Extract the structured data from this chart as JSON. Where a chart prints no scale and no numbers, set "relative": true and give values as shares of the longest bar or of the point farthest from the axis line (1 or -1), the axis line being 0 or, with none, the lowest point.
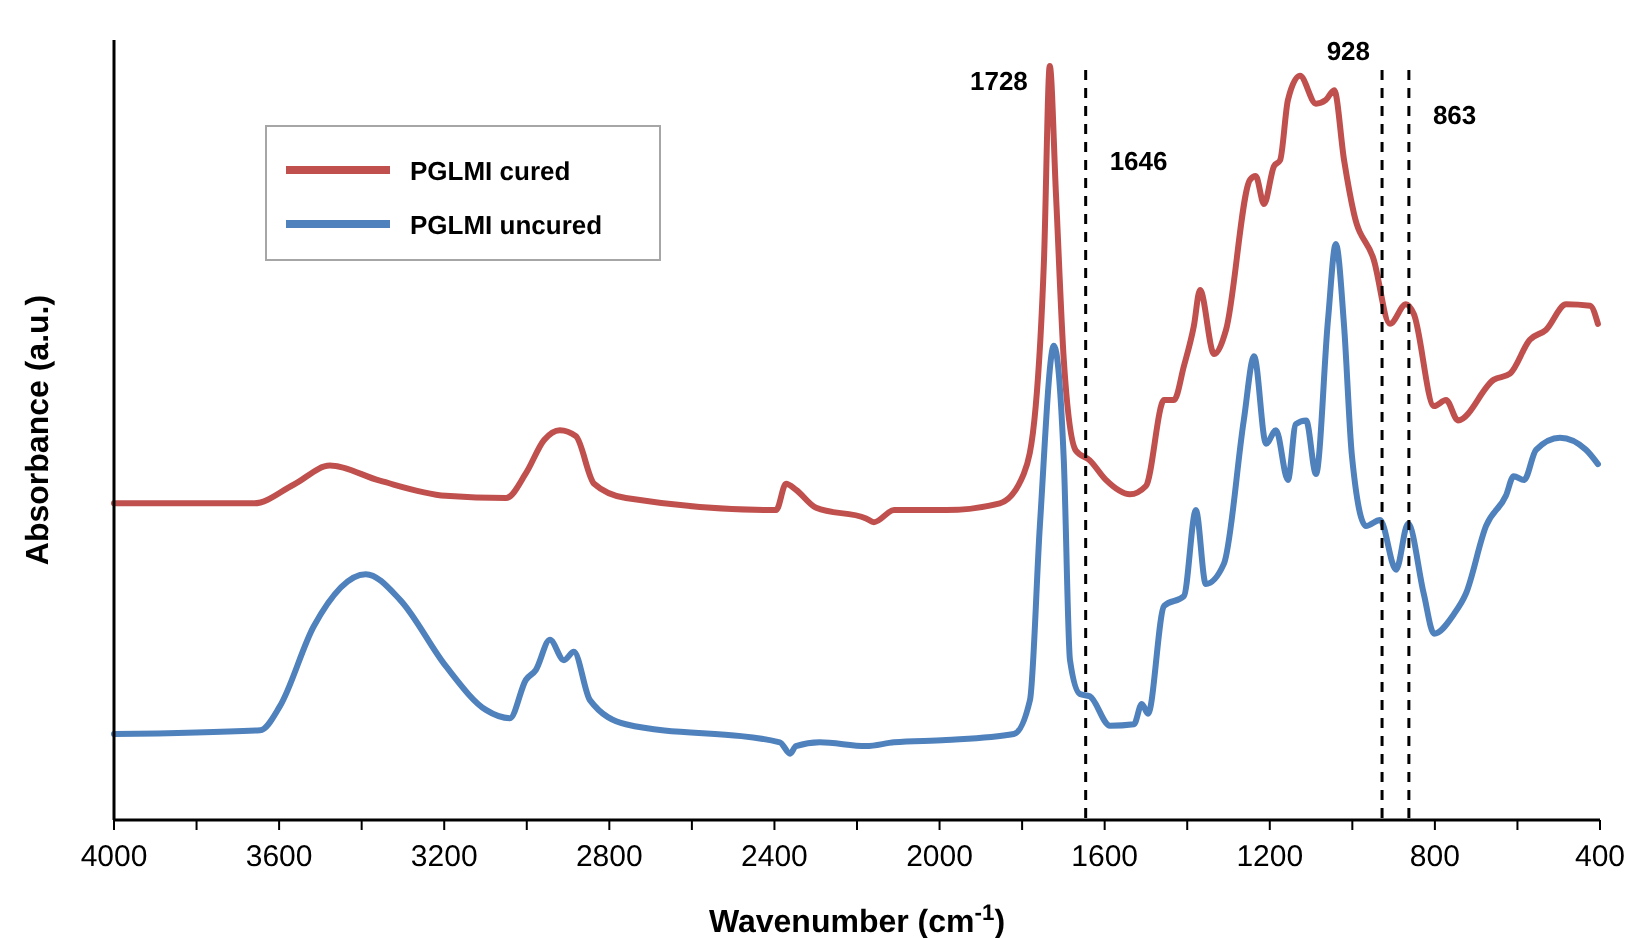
{
  "chart_data": {
    "type": "line",
    "relative": true,
    "xlabel": "Wavenumber (cm$^{-1}$)",
    "ylabel": "Absorbance (a.u.)",
    "xlim": [
      4000,
      400
    ],
    "xticks": [
      4000,
      {
        "value": 3800,
        "label": null
      },
      3600,
      {
        "value": 3400,
        "label": null
      },
      3200,
      {
        "value": 3000,
        "label": null
      },
      2800,
      {
        "value": 2600,
        "label": null
      },
      2400,
      {
        "value": 2200,
        "label": null
      },
      2000,
      {
        "value": 1800,
        "label": null
      },
      1600,
      {
        "value": 1400,
        "label": null
      },
      1200,
      {
        "value": 1000,
        "label": null
      },
      800,
      {
        "value": 600,
        "label": null
      },
      400
    ],
    "legend": "top left",
    "line_style": "solid",
    "marker": "none",
    "grid": false,
    "series": [
      {
        "name": "PGLMI cured",
        "color": "#c0504d",
        "x": [
          4000,
          3661,
          3564,
          3477,
          3356,
          3196,
          3050,
          3002,
          2958,
          2920,
          2881,
          2837,
          2760,
          2396,
          2372,
          2348,
          2299,
          2178,
          2159,
          2110,
          1984,
          1854,
          1796,
          1767,
          1747,
          1733,
          1718,
          1699,
          1670,
          1636,
          1597,
          1539,
          1500,
          1456,
          1432,
          1408,
          1384,
          1369,
          1335,
          1306,
          1248,
          1234,
          1214,
          1190,
          1175,
          1156,
          1127,
          1088,
          1064,
          1044,
          1020,
          996,
          948,
          909,
          870,
          851,
          802,
          773,
          744,
          657,
          618,
          570,
          531,
          482,
          424,
          405
        ],
        "values": [
          0.42,
          0.42,
          0.445,
          0.47,
          0.45,
          0.43,
          0.427,
          0.46,
          0.504,
          0.517,
          0.509,
          0.446,
          0.427,
          0.411,
          0.446,
          0.438,
          0.414,
          0.4,
          0.395,
          0.411,
          0.411,
          0.42,
          0.459,
          0.549,
          0.743,
          1,
          0.83,
          0.61,
          0.49,
          0.477,
          0.451,
          0.432,
          0.443,
          0.557,
          0.557,
          0.602,
          0.655,
          0.703,
          0.618,
          0.65,
          0.849,
          0.854,
          0.817,
          0.867,
          0.875,
          0.955,
          0.987,
          0.95,
          0.955,
          0.968,
          0.875,
          0.804,
          0.743,
          0.658,
          0.684,
          0.671,
          0.549,
          0.557,
          0.53,
          0.584,
          0.592,
          0.637,
          0.65,
          0.684,
          0.682,
          0.658
        ]
      },
      {
        "name": "PGLMI uncured",
        "color": "#4f81bd",
        "x": [
          4000,
          3646,
          3598,
          3516,
          3390,
          3307,
          3196,
          3099,
          3041,
          3002,
          2978,
          2944,
          2910,
          2886,
          2847,
          2760,
          2387,
          2362,
          2348,
          2290,
          2178,
          2110,
          1984,
          1820,
          1781,
          1757,
          1723,
          1699,
          1684,
          1660,
          1636,
          1587,
          1529,
          1510,
          1495,
          1456,
          1408,
          1379,
          1355,
          1311,
          1263,
          1238,
          1209,
          1185,
          1156,
          1137,
          1112,
          1088,
          1059,
          1040,
          1020,
          1001,
          967,
          933,
          894,
          865,
          827,
          802,
          754,
          725,
          676,
          628,
          609,
          584,
          555,
          497,
          434,
          405
        ],
        "values": [
          0.114,
          0.119,
          0.151,
          0.257,
          0.326,
          0.292,
          0.204,
          0.146,
          0.135,
          0.186,
          0.199,
          0.239,
          0.212,
          0.223,
          0.159,
          0.127,
          0.103,
          0.088,
          0.098,
          0.103,
          0.098,
          0.103,
          0.106,
          0.114,
          0.159,
          0.39,
          0.629,
          0.477,
          0.212,
          0.167,
          0.164,
          0.125,
          0.127,
          0.154,
          0.141,
          0.284,
          0.297,
          0.411,
          0.313,
          0.34,
          0.53,
          0.615,
          0.499,
          0.517,
          0.451,
          0.525,
          0.53,
          0.459,
          0.663,
          0.764,
          0.655,
          0.483,
          0.39,
          0.398,
          0.332,
          0.393,
          0.3,
          0.247,
          0.273,
          0.3,
          0.39,
          0.43,
          0.456,
          0.451,
          0.491,
          0.507,
          0.491,
          0.472
        ]
      }
    ],
    "ref_lines": [
      {
        "axis": "x",
        "value": 1646,
        "label": "1646",
        "color": "#000000",
        "line_style": "dashed"
      },
      {
        "axis": "x",
        "value": 928,
        "label": "928",
        "color": "#000000",
        "line_style": "dashed"
      },
      {
        "axis": "x",
        "value": 863,
        "label": "863",
        "color": "#000000",
        "line_style": "dashed"
      }
    ],
    "annotations": [
      {
        "text": "1728",
        "x": 1728,
        "y": 1
      }
    ]
  }
}
